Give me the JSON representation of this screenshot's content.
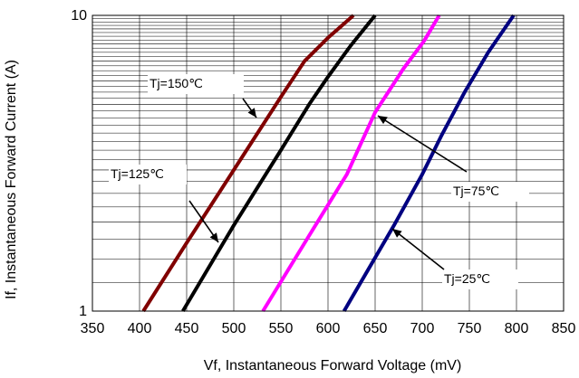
{
  "chart_data": {
    "type": "line",
    "xlabel": "Vf, Instantaneous Forward  Voltage (mV)",
    "ylabel": "If, Instantaneous Forward Current (A)",
    "xlim": [
      350,
      850
    ],
    "ylim": [
      1,
      10
    ],
    "y_scale": "log",
    "grid": true,
    "x_ticks": [
      "350",
      "400",
      "450",
      "500",
      "550",
      "600",
      "650",
      "700",
      "750",
      "800",
      "850"
    ],
    "y_ticks": [
      "1",
      "10"
    ],
    "series": [
      {
        "name": "Tj=150℃",
        "color": "#800000",
        "x": [
          404,
          450,
          500,
          550,
          575,
          600,
          627
        ],
        "y": [
          1,
          1.7,
          3.0,
          5.3,
          7.0,
          8.4,
          10
        ]
      },
      {
        "name": "Tj=125℃",
        "color": "#000000",
        "x": [
          446,
          500,
          550,
          580,
          600,
          624,
          650
        ],
        "y": [
          1,
          1.95,
          3.5,
          5.0,
          6.2,
          7.9,
          10
        ]
      },
      {
        "name": "Tj=75℃",
        "color": "#ff00ff",
        "x": [
          531,
          580,
          620,
          650,
          680,
          702,
          718
        ],
        "y": [
          1,
          1.8,
          2.9,
          4.7,
          6.6,
          8.2,
          10
        ]
      },
      {
        "name": "Tj=25℃",
        "color": "#000080",
        "x": [
          617,
          670,
          700,
          720,
          745,
          770,
          797
        ],
        "y": [
          1,
          1.95,
          2.9,
          3.9,
          5.5,
          7.5,
          10
        ]
      }
    ],
    "annotations": [
      {
        "text": "Tj=150℃",
        "series": "Tj=150℃"
      },
      {
        "text": "Tj=125℃",
        "series": "Tj=125℃"
      },
      {
        "text": "Tj=75℃",
        "series": "Tj=75℃"
      },
      {
        "text": "Tj=25℃",
        "series": "Tj=25℃"
      }
    ]
  }
}
